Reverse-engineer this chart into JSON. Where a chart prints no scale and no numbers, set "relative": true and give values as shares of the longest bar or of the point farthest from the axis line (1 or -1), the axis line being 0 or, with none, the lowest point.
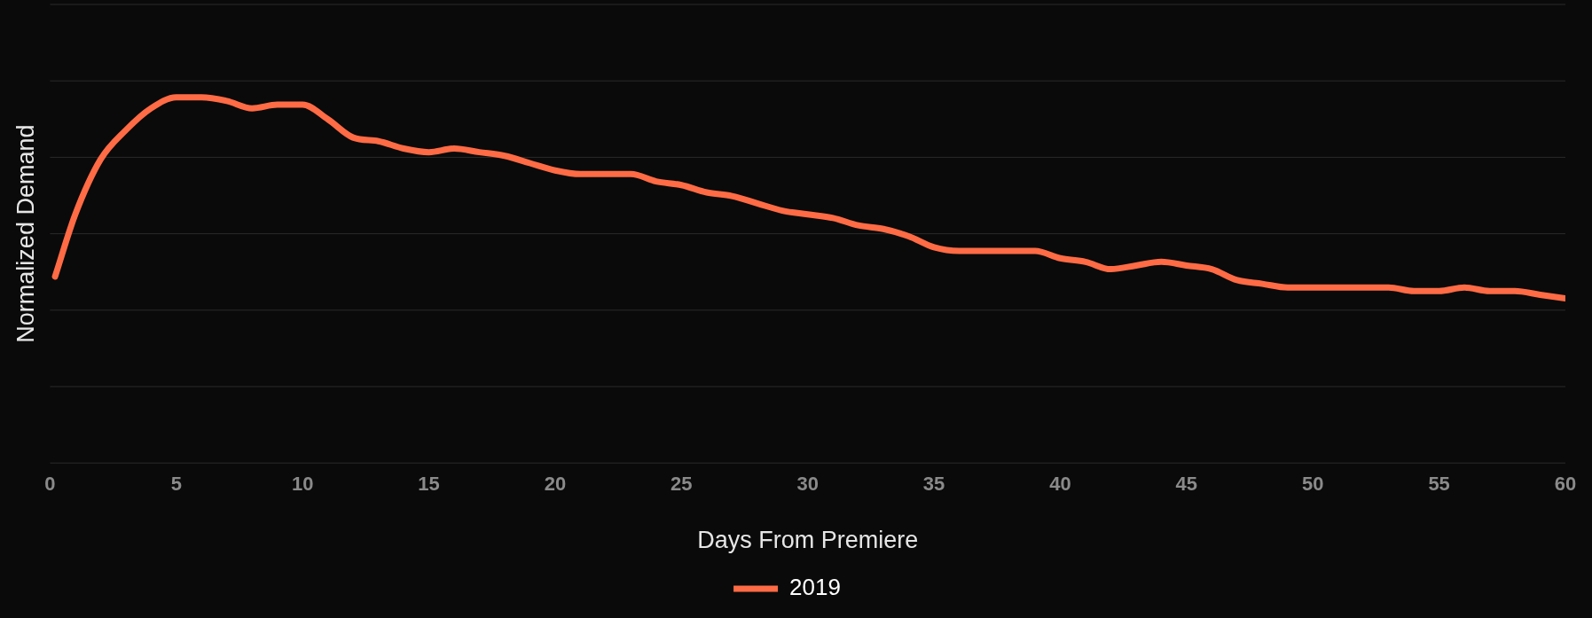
{
  "chart_data": {
    "type": "line",
    "xlabel": "Days From Premiere",
    "ylabel": "Normalized Demand",
    "relative": true,
    "grid": "y",
    "legend": "bottom",
    "marker": "none",
    "line_style": "solid",
    "xlim": [
      0,
      60
    ],
    "xticks": [
      0,
      5,
      10,
      15,
      20,
      25,
      30,
      35,
      40,
      45,
      50,
      55,
      60
    ],
    "series": [
      {
        "name": "2019",
        "color": "#ff6b45",
        "x": [
          0.2,
          1,
          2,
          3,
          4,
          5,
          6,
          7,
          8,
          9,
          10,
          11,
          12,
          13,
          14,
          15,
          16,
          17,
          18,
          19,
          20,
          21,
          22,
          23,
          24,
          25,
          26,
          27,
          28,
          29,
          30,
          31,
          32,
          33,
          34,
          35,
          36,
          37,
          38,
          39,
          40,
          41,
          42,
          43,
          44,
          45,
          46,
          47,
          48,
          49,
          50,
          51,
          52,
          53,
          54,
          55,
          56,
          57,
          58,
          59,
          60
        ],
        "values": [
          0.51,
          0.68,
          0.83,
          0.91,
          0.97,
          1,
          1,
          0.99,
          0.97,
          0.98,
          0.98,
          0.94,
          0.89,
          0.88,
          0.86,
          0.85,
          0.86,
          0.85,
          0.84,
          0.82,
          0.8,
          0.79,
          0.79,
          0.79,
          0.77,
          0.76,
          0.74,
          0.73,
          0.71,
          0.69,
          0.68,
          0.67,
          0.65,
          0.64,
          0.62,
          0.59,
          0.58,
          0.58,
          0.58,
          0.58,
          0.56,
          0.55,
          0.53,
          0.54,
          0.55,
          0.54,
          0.53,
          0.5,
          0.49,
          0.48,
          0.48,
          0.48,
          0.48,
          0.48,
          0.47,
          0.47,
          0.48,
          0.47,
          0.47,
          0.46,
          0.45
        ]
      }
    ]
  }
}
